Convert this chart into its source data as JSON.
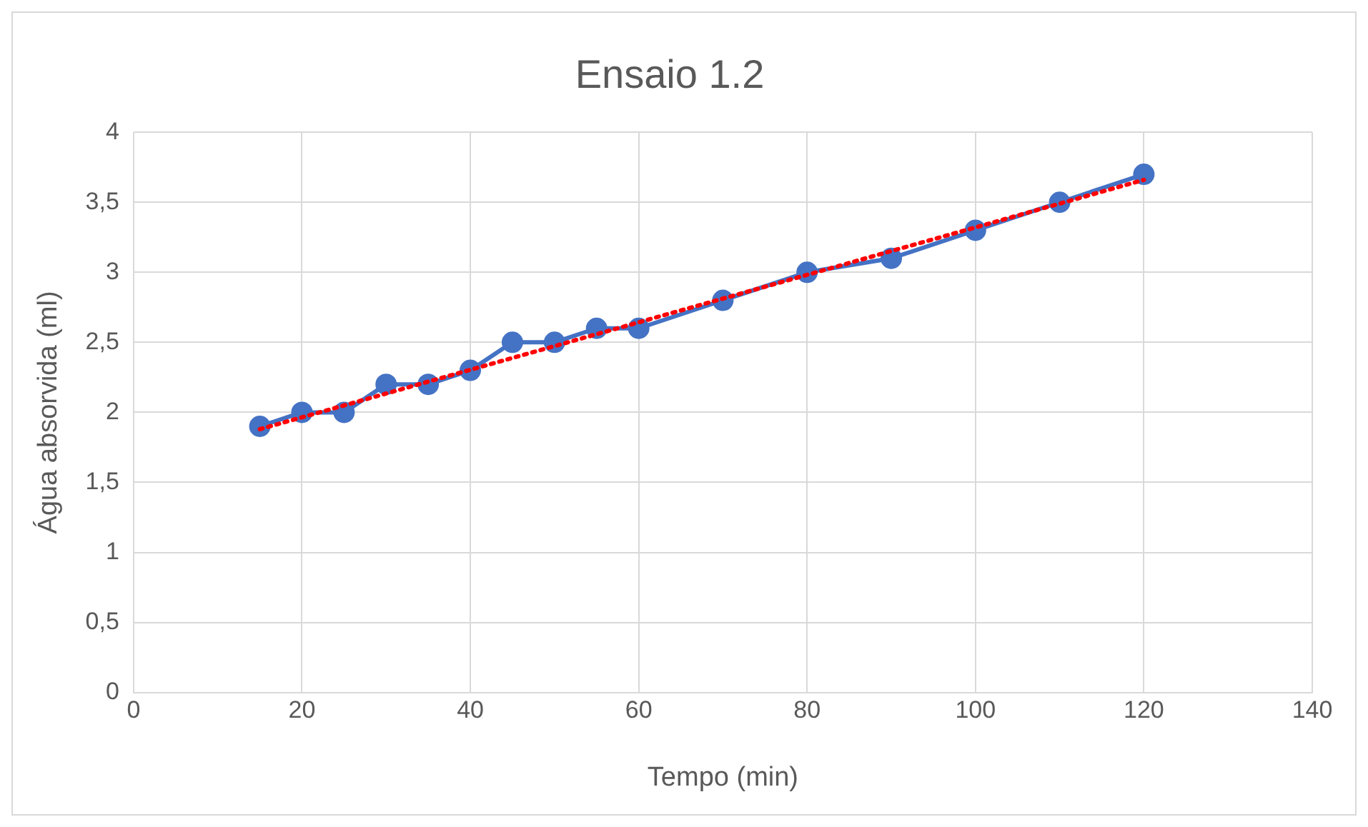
{
  "chart_data": {
    "type": "line",
    "title": "Ensaio 1.2",
    "xlabel": "Tempo (min)",
    "ylabel": "Água absorvida (ml)",
    "x": [
      15,
      20,
      25,
      30,
      35,
      40,
      45,
      50,
      55,
      60,
      70,
      80,
      90,
      100,
      110,
      120
    ],
    "series": [
      {
        "color": "#4472c4",
        "values": [
          1.9,
          2.0,
          2.0,
          2.2,
          2.2,
          2.3,
          2.5,
          2.5,
          2.6,
          2.6,
          2.8,
          3.0,
          3.1,
          3.3,
          3.5,
          3.7
        ],
        "marker": "circle",
        "line_style": "solid"
      },
      {
        "type": "line",
        "color": "#ff0000",
        "x": [
          15,
          120
        ],
        "values": [
          1.88,
          3.66
        ],
        "marker": "none",
        "line_style": "dotted"
      }
    ],
    "xlim": [
      0,
      140
    ],
    "xticks": [
      0,
      20,
      40,
      60,
      80,
      100,
      120,
      140
    ],
    "ylim": [
      0,
      4
    ],
    "yticks": [
      0,
      {
        "value": 0.5,
        "label": "0,5"
      },
      1,
      {
        "value": 1.5,
        "label": "1,5"
      },
      2,
      {
        "value": 2.5,
        "label": "2,5"
      },
      3,
      {
        "value": 3.5,
        "label": "3,5"
      },
      4
    ],
    "grid": true,
    "legend": false
  }
}
